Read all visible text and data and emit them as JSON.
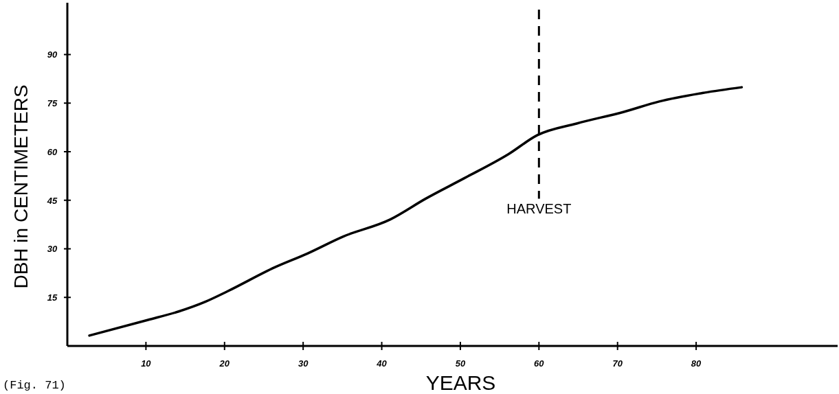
{
  "chart_data": {
    "type": "line",
    "xlabel": "YEARS",
    "ylabel": "DBH in CENTIMETERS",
    "x": [
      2.8,
      10.2,
      14.1,
      17.6,
      20.4,
      26.4,
      30.5,
      35.1,
      41.1,
      45.6,
      50.5,
      56.1,
      59.8,
      64.8,
      70.8,
      75.3,
      81,
      85.8
    ],
    "series": [
      {
        "color": "#000000",
        "values": [
          3.2,
          8,
          10.6,
          13.7,
          16.9,
          24.3,
          28.5,
          33.8,
          39.1,
          45.5,
          51.8,
          59.2,
          65.1,
          68.7,
          72.3,
          75.5,
          78.2,
          79.9
        ]
      }
    ],
    "xlim": [
      0,
      98
    ],
    "ylim": [
      0,
      106
    ],
    "xticks": [
      10,
      20,
      30,
      40,
      50,
      60,
      70,
      80
    ],
    "yticks": [
      15,
      30,
      45,
      60,
      75,
      90
    ],
    "ref_lines": [
      {
        "axis": "x",
        "value": 60,
        "label": "HARVEST",
        "line_style": "dashed",
        "color": "#000000"
      }
    ],
    "annotations": [
      "(Fig. 71)"
    ],
    "grid": false,
    "marker": "none",
    "line_style": "solid"
  }
}
